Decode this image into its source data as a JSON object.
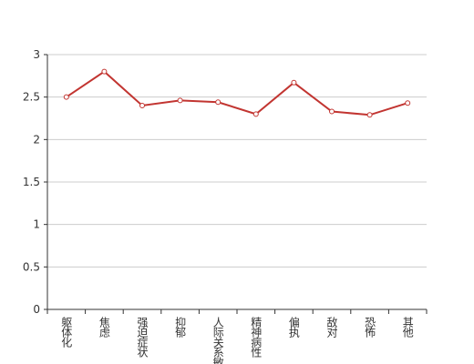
{
  "chart_data": {
    "type": "line",
    "categories": [
      "躯体化",
      "焦虑",
      "强迫症状",
      "抑郁",
      "人际关系敏感",
      "精神病性",
      "偏执",
      "敌对",
      "恐怖",
      "其他"
    ],
    "values": [
      2.5,
      2.8,
      2.4,
      2.46,
      2.44,
      2.3,
      2.67,
      2.33,
      2.29,
      2.43
    ],
    "color": "#c23531",
    "ylim": [
      0,
      3
    ],
    "yticks": [
      0,
      0.5,
      1,
      1.5,
      2,
      2.5,
      3
    ],
    "grid": true
  }
}
